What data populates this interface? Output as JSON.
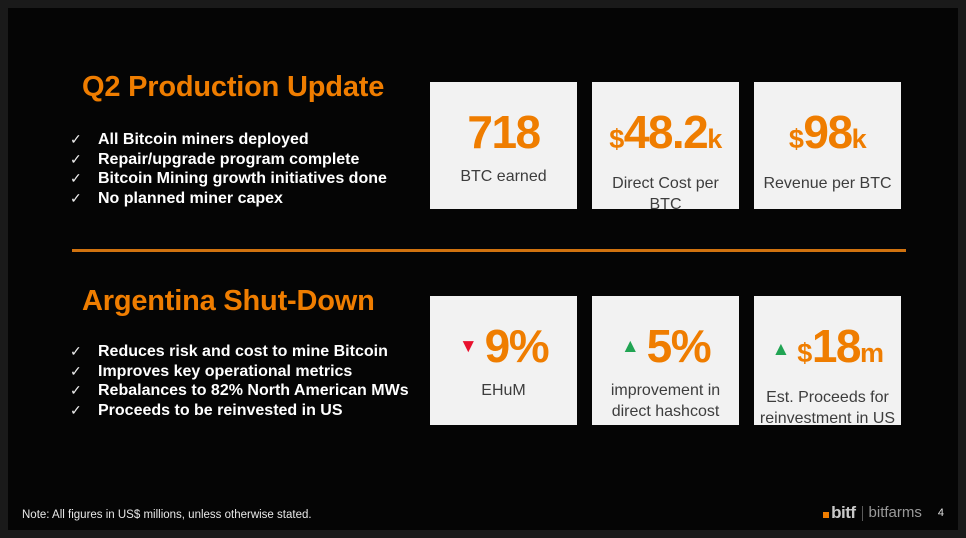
{
  "slide": {
    "footer_note": "Note: All figures in US$ millions, unless otherwise stated.",
    "page_number": "4",
    "logo": {
      "mark": "bitf",
      "wordmark": "bitfarms"
    },
    "colors": {
      "accent_orange": "#EF7D00",
      "divider_orange": "#D0720F",
      "card_background": "#F2F2F2",
      "up_green": "#21A453",
      "down_red": "#E8112D",
      "slide_background": "#050505",
      "frame_border": "#1A1A1A",
      "bullet_text": "#FFFFFF",
      "card_label_text": "#3D3D3D"
    }
  },
  "icons": {
    "check": "✓",
    "arrow_up": "▲",
    "arrow_down": "▼"
  },
  "sections": [
    {
      "title": "Q2 Production Update",
      "bullets": [
        "All Bitcoin miners deployed",
        "Repair/upgrade program complete",
        "Bitcoin Mining growth initiatives done",
        "No planned miner capex"
      ],
      "cards": [
        {
          "prefix": "",
          "main": "718",
          "suffix": "",
          "arrow": "none",
          "label_lines": [
            "BTC earned"
          ]
        },
        {
          "prefix": "$",
          "main": "48.2",
          "suffix": "k",
          "arrow": "none",
          "label_lines": [
            "Direct Cost per BTC"
          ]
        },
        {
          "prefix": "$",
          "main": "98",
          "suffix": "k",
          "arrow": "none",
          "label_lines": [
            "Revenue per BTC"
          ]
        }
      ]
    },
    {
      "title": "Argentina Shut-Down",
      "bullets": [
        "Reduces risk and cost to mine Bitcoin",
        "Improves key operational metrics",
        "Rebalances to 82% North American MWs",
        "Proceeds to be reinvested in US"
      ],
      "cards": [
        {
          "prefix": "",
          "main": "9%",
          "suffix": "",
          "arrow": "down",
          "label_lines": [
            "EHuM"
          ]
        },
        {
          "prefix": "",
          "main": "5%",
          "suffix": "",
          "arrow": "up",
          "label_lines": [
            "improvement in",
            "direct hashcost"
          ]
        },
        {
          "prefix": "$",
          "main": "18",
          "suffix": "m",
          "arrow": "up",
          "label_lines": [
            "Est. Proceeds for",
            "reinvestment in US"
          ]
        }
      ]
    }
  ]
}
